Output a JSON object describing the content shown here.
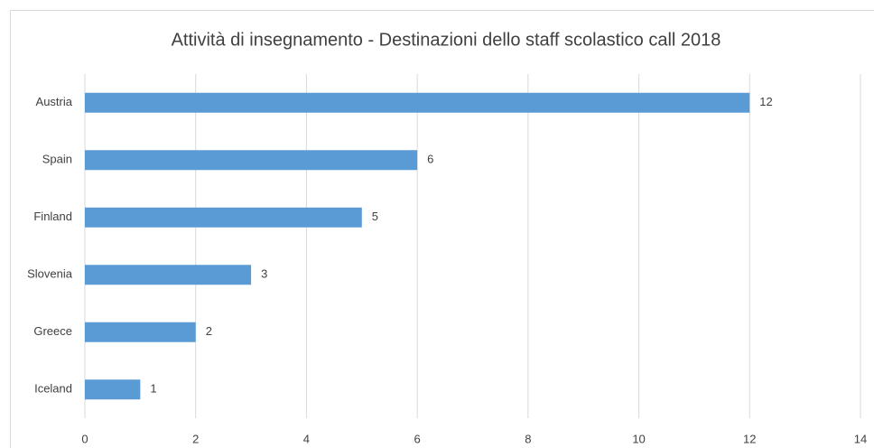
{
  "chart_data": {
    "type": "bar",
    "orientation": "horizontal",
    "title": "Attività di insegnamento - Destinazioni dello staff scolastico call 2018",
    "categories": [
      "Austria",
      "Spain",
      "Finland",
      "Slovenia",
      "Greece",
      "Iceland"
    ],
    "values": [
      12,
      6,
      5,
      3,
      2,
      1
    ],
    "color": "#5b9bd5",
    "xlim": [
      0,
      14
    ],
    "xticks": [
      0,
      2,
      4,
      6,
      8,
      10,
      12,
      14
    ],
    "grid": true
  }
}
